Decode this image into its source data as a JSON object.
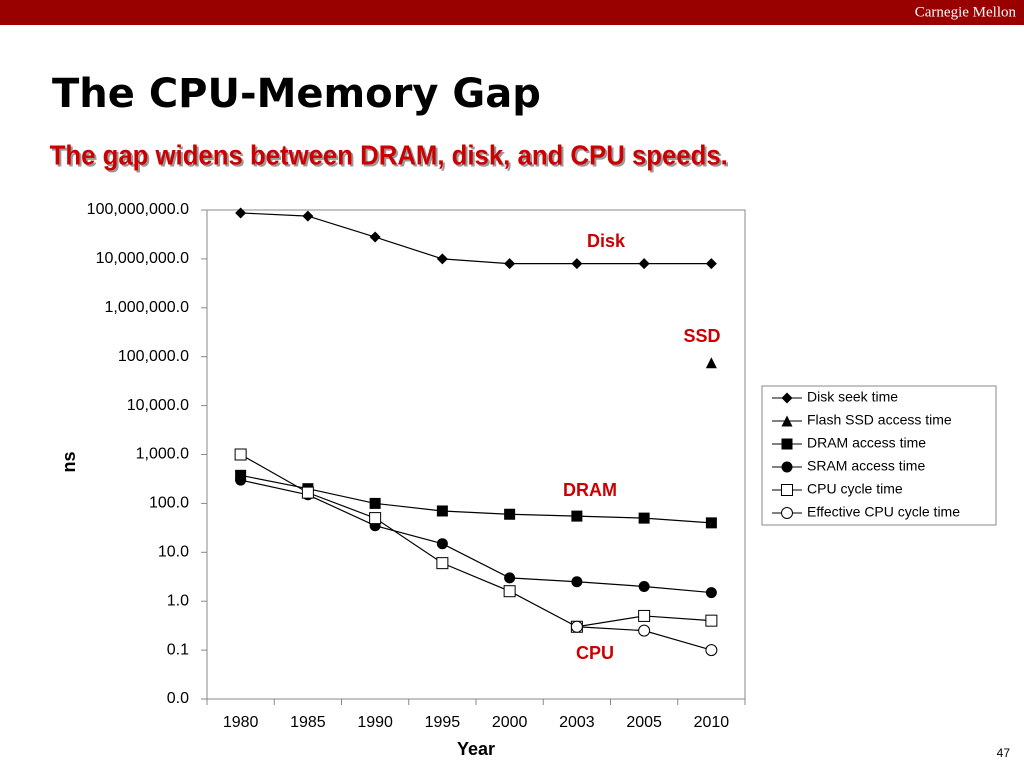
{
  "header": {
    "org": "Carnegie Mellon"
  },
  "page_number": 47,
  "chart_data": {
    "type": "line",
    "title": "The CPU-Memory Gap",
    "subtitle": "The gap widens between DRAM, disk, and CPU speeds.",
    "x_label": "Year",
    "y_label": "ns",
    "categories": [
      "1980",
      "1985",
      "1990",
      "1995",
      "2000",
      "2003",
      "2005",
      "2010"
    ],
    "log_scale": true,
    "grid": false,
    "legend": "right",
    "ylim": [
      0.01,
      100000000
    ],
    "yticks": [
      {
        "value": 0.01,
        "label": "0.0"
      },
      {
        "value": 0.1,
        "label": "0.1"
      },
      {
        "value": 1,
        "label": "1.0"
      },
      {
        "value": 10,
        "label": "10.0"
      },
      {
        "value": 100,
        "label": "100.0"
      },
      {
        "value": 1000,
        "label": "1,000.0"
      },
      {
        "value": 10000,
        "label": "10,000.0"
      },
      {
        "value": 100000,
        "label": "100,000.0"
      },
      {
        "value": 1000000,
        "label": "1,000,000.0"
      },
      {
        "value": 10000000,
        "label": "10,000,000.0"
      },
      {
        "value": 100000000,
        "label": "100,000,000.0"
      }
    ],
    "series": [
      {
        "name": "Disk seek time",
        "color": "#000000",
        "marker": "diamond",
        "values": [
          87000000,
          75000000,
          28000000,
          10000000,
          8000000,
          8000000,
          8000000,
          8000000
        ]
      },
      {
        "name": "Flash SSD access time",
        "color": "#000000",
        "marker": "triangle",
        "values": [
          null,
          null,
          null,
          null,
          null,
          null,
          null,
          75000
        ]
      },
      {
        "name": "DRAM access time",
        "color": "#000000",
        "marker": "square",
        "values": [
          375,
          200,
          100,
          70,
          60,
          55,
          50,
          40
        ]
      },
      {
        "name": "SRAM access time",
        "color": "#000000",
        "marker": "circle",
        "values": [
          300,
          150,
          35,
          15,
          3,
          2.5,
          2,
          1.5
        ]
      },
      {
        "name": "CPU cycle time",
        "color": "#000000",
        "marker": "open-square",
        "values": [
          1000,
          166,
          50,
          6,
          1.6,
          0.3,
          0.5,
          0.4
        ]
      },
      {
        "name": "Effective CPU cycle time",
        "color": "#000000",
        "marker": "open-circle",
        "values": [
          null,
          null,
          null,
          null,
          null,
          0.3,
          0.25,
          0.1
        ]
      }
    ],
    "annotations": [
      "Disk",
      "SSD",
      "DRAM",
      "CPU"
    ],
    "annotation_color": "#cc0000"
  }
}
